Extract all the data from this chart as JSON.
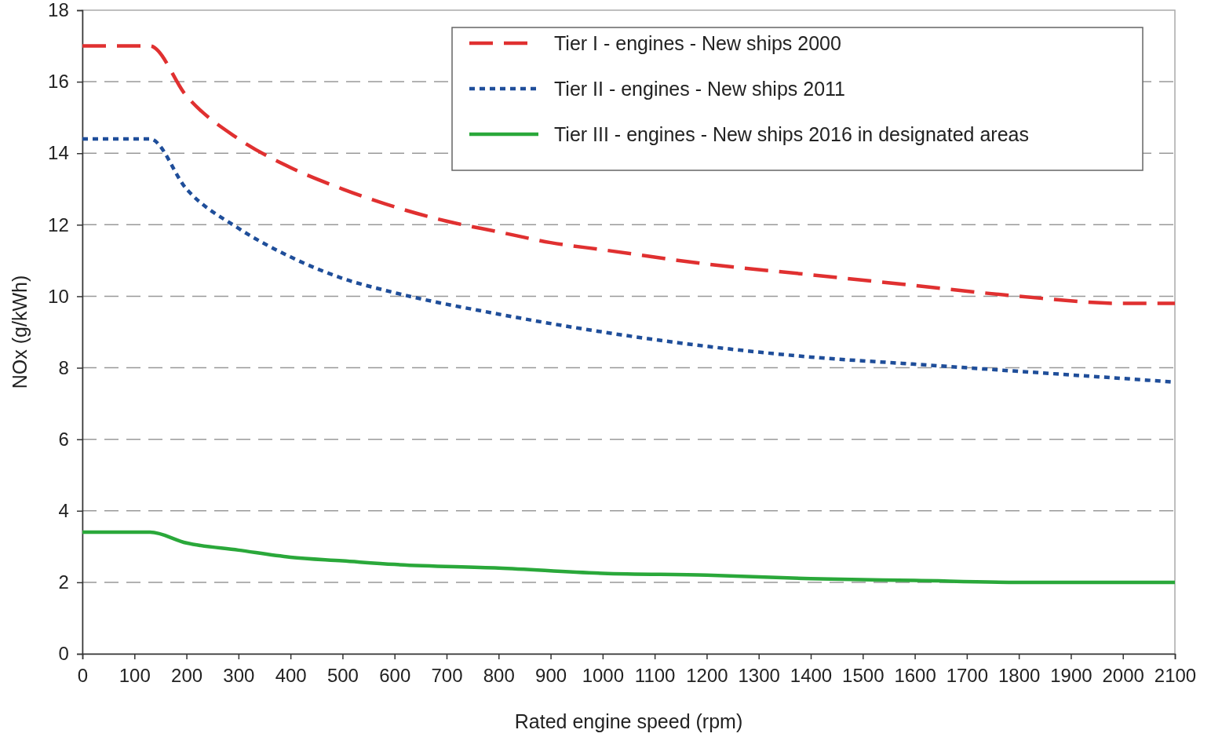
{
  "chart_data": {
    "type": "line",
    "xlabel": "Rated engine speed (rpm)",
    "ylabel": "NOx (g/kWh)",
    "xlim": [
      0,
      2100
    ],
    "xticks": [
      0,
      100,
      200,
      300,
      400,
      500,
      600,
      700,
      800,
      900,
      1000,
      1100,
      1200,
      1300,
      1400,
      1500,
      1600,
      1700,
      1800,
      1900,
      2000,
      2100
    ],
    "ylim": [
      0,
      18
    ],
    "yticks": [
      0,
      2,
      4,
      6,
      8,
      10,
      12,
      14,
      16,
      18
    ],
    "grid": "y",
    "legend": "top right",
    "marker": "none",
    "series": [
      {
        "name": "Tier I - engines - New ships 2000",
        "color": "#e03030",
        "line_style": "dashed",
        "x": [
          0,
          130,
          200,
          300,
          400,
          500,
          600,
          700,
          800,
          900,
          1000,
          1200,
          1400,
          1600,
          1800,
          2000,
          2100
        ],
        "values": [
          17,
          17,
          15.6,
          14.4,
          13.6,
          13,
          12.5,
          12.1,
          11.8,
          11.5,
          11.3,
          10.9,
          10.6,
          10.3,
          10,
          9.8,
          9.8
        ]
      },
      {
        "name": "Tier II - engines - New ships 2011",
        "color": "#1f4e9a",
        "line_style": "dotted",
        "x": [
          0,
          130,
          200,
          300,
          400,
          500,
          600,
          800,
          1000,
          1200,
          1400,
          1600,
          1800,
          2000,
          2100
        ],
        "values": [
          14.4,
          14.4,
          13,
          11.9,
          11.1,
          10.5,
          10.1,
          9.5,
          9,
          8.6,
          8.3,
          8.1,
          7.9,
          7.7,
          7.6
        ]
      },
      {
        "name": "Tier III - engines - New ships 2016 in designated areas",
        "color": "#2aa83a",
        "line_style": "solid",
        "x": [
          0,
          130,
          200,
          300,
          400,
          500,
          600,
          800,
          1000,
          1200,
          1400,
          1600,
          1800,
          2000,
          2100
        ],
        "values": [
          3.4,
          3.4,
          3.1,
          2.9,
          2.7,
          2.6,
          2.5,
          2.4,
          2.25,
          2.2,
          2.1,
          2.05,
          2,
          2,
          2
        ]
      }
    ]
  }
}
